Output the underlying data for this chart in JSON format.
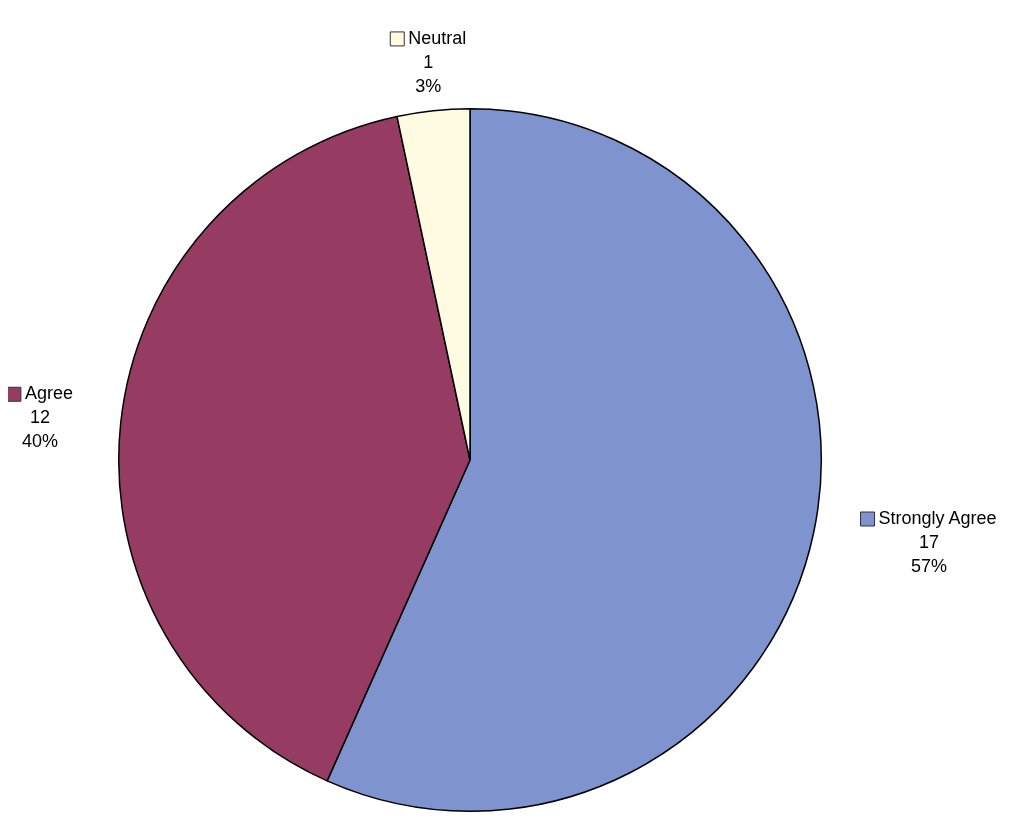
{
  "chart_data": {
    "type": "pie",
    "categories": [
      "Strongly Agree",
      "Agree",
      "Neutral"
    ],
    "values": [
      17,
      12,
      1
    ],
    "value_labels": [
      "17\n57%",
      "12\n40%",
      "1\n3%"
    ],
    "colors": [
      "#7f93cf",
      "#963c63",
      "#fffbe3"
    ],
    "legend": true
  }
}
